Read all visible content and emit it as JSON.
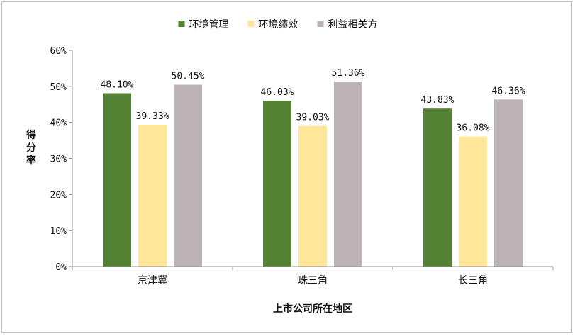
{
  "chart_data": {
    "type": "bar",
    "categories": [
      "京津冀",
      "珠三角",
      "长三角"
    ],
    "series": [
      {
        "name": "环境管理",
        "values": [
          48.1,
          46.03,
          43.83
        ],
        "color": "#548235"
      },
      {
        "name": "环境绩效",
        "values": [
          39.33,
          39.03,
          36.08
        ],
        "color": "#ffe699"
      },
      {
        "name": "利益相关方",
        "values": [
          50.45,
          51.36,
          46.36
        ],
        "color": "#bcb3b6"
      }
    ],
    "value_labels": [
      [
        "48.10%",
        "46.03%",
        "43.83%"
      ],
      [
        "39.33%",
        "39.03%",
        "36.08%"
      ],
      [
        "50.45%",
        "51.36%",
        "46.36%"
      ]
    ],
    "yticks": [
      "0%",
      "10%",
      "20%",
      "30%",
      "40%",
      "50%",
      "60%"
    ],
    "ylim": [
      0,
      60
    ],
    "xlabel": "上市公司所在地区",
    "ylabel": "得分率",
    "legend": "top",
    "grid": false
  }
}
